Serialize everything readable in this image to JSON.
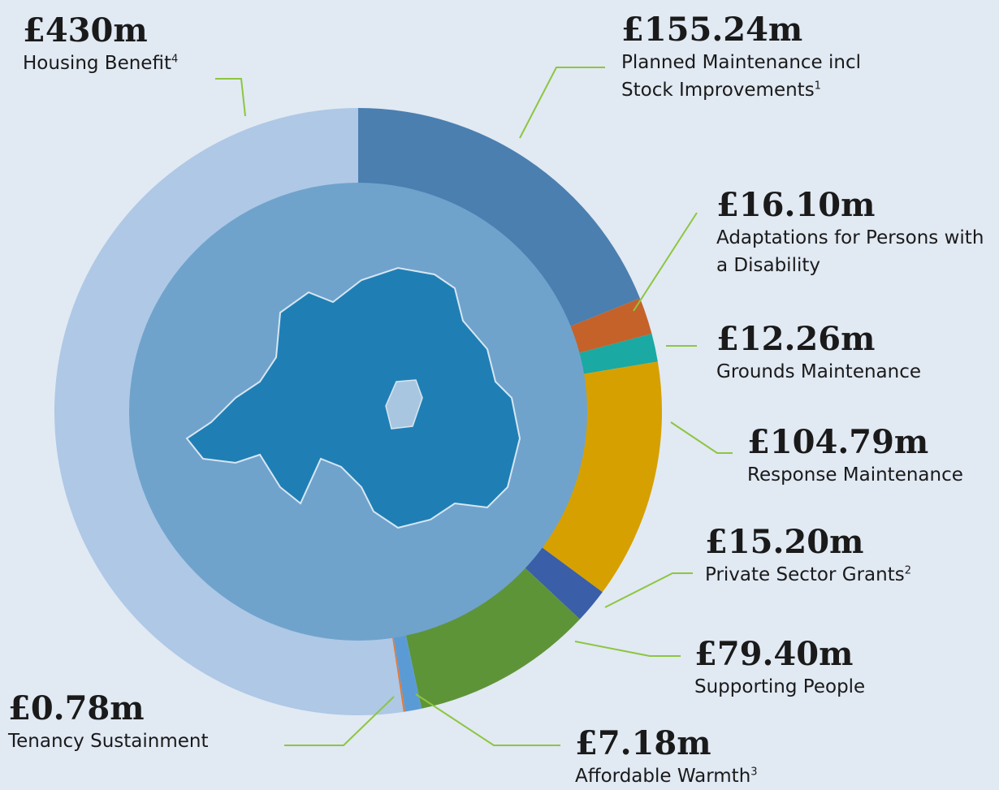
{
  "chart_data": {
    "type": "pie",
    "categories": [
      "Planned Maintenance incl Stock Improvements",
      "Adaptations for Persons with a Disability",
      "Grounds Maintenance",
      "Response Maintenance",
      "Private Sector Grants",
      "Supporting People",
      "Affordable Warmth",
      "Tenancy Sustainment",
      "Housing Benefit"
    ],
    "footnotes": [
      "1",
      null,
      null,
      null,
      "2",
      null,
      "3",
      null,
      "4"
    ],
    "values": [
      155.24,
      16.1,
      12.26,
      104.79,
      15.2,
      79.4,
      7.18,
      0.78,
      430
    ],
    "value_labels": [
      "£155.24m",
      "£16.10m",
      "£12.26m",
      "£104.79m",
      "£15.20m",
      "£79.40m",
      "£7.18m",
      "£0.78m",
      "£430m"
    ],
    "colors": [
      "#4a7fb0",
      "#c4622a",
      "#1aa9a3",
      "#d6a000",
      "#3a5ea8",
      "#5e9438",
      "#5b9bd5",
      "#e07a3a",
      "#aec8e6"
    ]
  }
}
